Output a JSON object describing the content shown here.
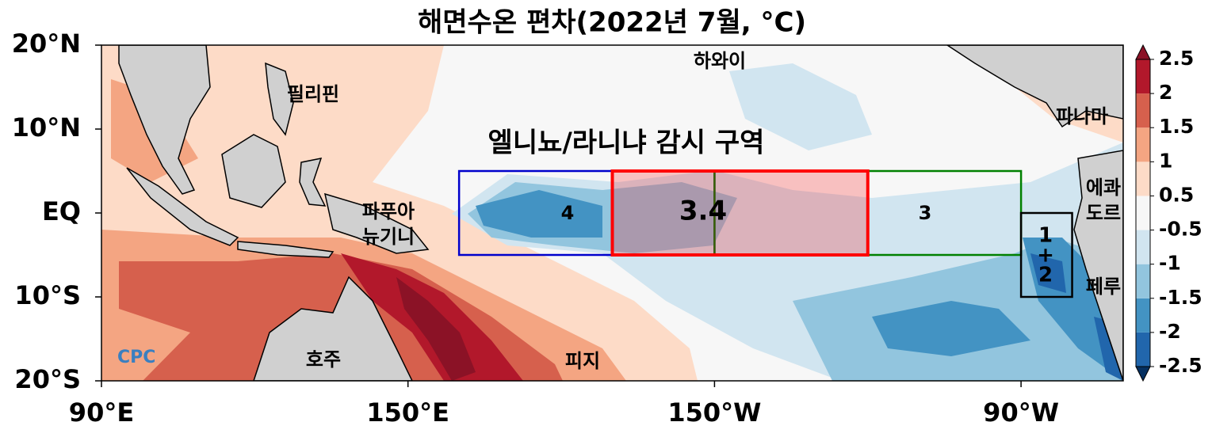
{
  "title": "해면수온 편차(2022년 7월, °C)",
  "map": {
    "lonlim": [
      90,
      290
    ],
    "latlim": [
      -20,
      20
    ],
    "lat_ticks": [
      {
        "value": 20,
        "label": "20°N"
      },
      {
        "value": 10,
        "label": "10°N"
      },
      {
        "value": 0,
        "label": "EQ"
      },
      {
        "value": -10,
        "label": "10°S"
      },
      {
        "value": -20,
        "label": "20°S"
      }
    ],
    "lon_ticks": [
      {
        "value": 90,
        "label": "90°E"
      },
      {
        "value": 150,
        "label": "150°E"
      },
      {
        "value": 210,
        "label": "150°W"
      },
      {
        "value": 270,
        "label": "90°W"
      }
    ],
    "monitoring_title": "엘니뇨/라니냐 감시 구역",
    "regions": [
      {
        "label": [
          "4"
        ],
        "lon": [
          160,
          210
        ],
        "lat": [
          -5,
          5
        ],
        "color": "#0000cc"
      },
      {
        "label": [
          "3"
        ],
        "lon": [
          210,
          270
        ],
        "lat": [
          -5,
          5
        ],
        "color": "#008000"
      },
      {
        "label": [
          "3.4"
        ],
        "lon": [
          190,
          240
        ],
        "lat": [
          -5,
          5
        ],
        "color": "#ff0000"
      },
      {
        "label": [
          "1",
          "+",
          "2"
        ],
        "lon": [
          270,
          280
        ],
        "lat": [
          -10,
          0
        ],
        "color": "#000000"
      }
    ],
    "places": [
      [
        "하와이"
      ],
      [
        "필리핀"
      ],
      [
        "파나마"
      ],
      [
        "에콰",
        "도르"
      ],
      [
        "파푸아",
        "뉴기니"
      ],
      [
        "페루"
      ],
      [
        "호주"
      ],
      [
        "피지"
      ]
    ],
    "logo": "CPC"
  },
  "colorbar": {
    "levels": [
      -2.5,
      -2.0,
      -1.5,
      -1.0,
      -0.5,
      0.5,
      1.0,
      1.5,
      2.0,
      2.5
    ],
    "colors": [
      "#053061",
      "#2166ac",
      "#4393c3",
      "#92c5de",
      "#d1e5f0",
      "#f7f7f7",
      "#fddbc7",
      "#f4a582",
      "#d6604d",
      "#b2182b",
      "#8b1226"
    ]
  }
}
